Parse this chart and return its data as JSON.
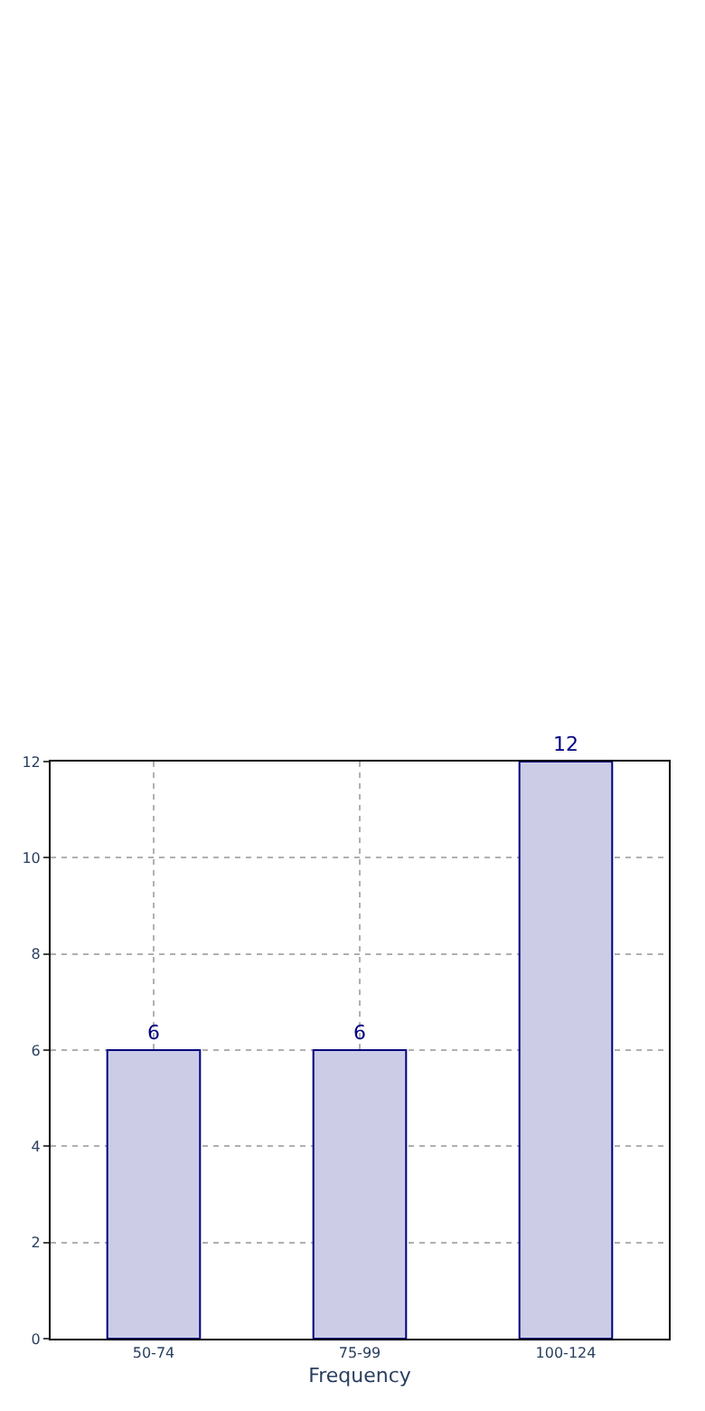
{
  "chart_data": {
    "type": "bar",
    "xlabel": "Frequency",
    "categories": [
      "50-74",
      "75-99",
      "100-124"
    ],
    "values": [
      6,
      6,
      12
    ],
    "color": "#ccccE6",
    "ylim": [
      0,
      12
    ],
    "yticks": [
      0,
      2,
      4,
      6,
      8,
      10,
      12
    ],
    "grid": true,
    "data_labels": true
  }
}
